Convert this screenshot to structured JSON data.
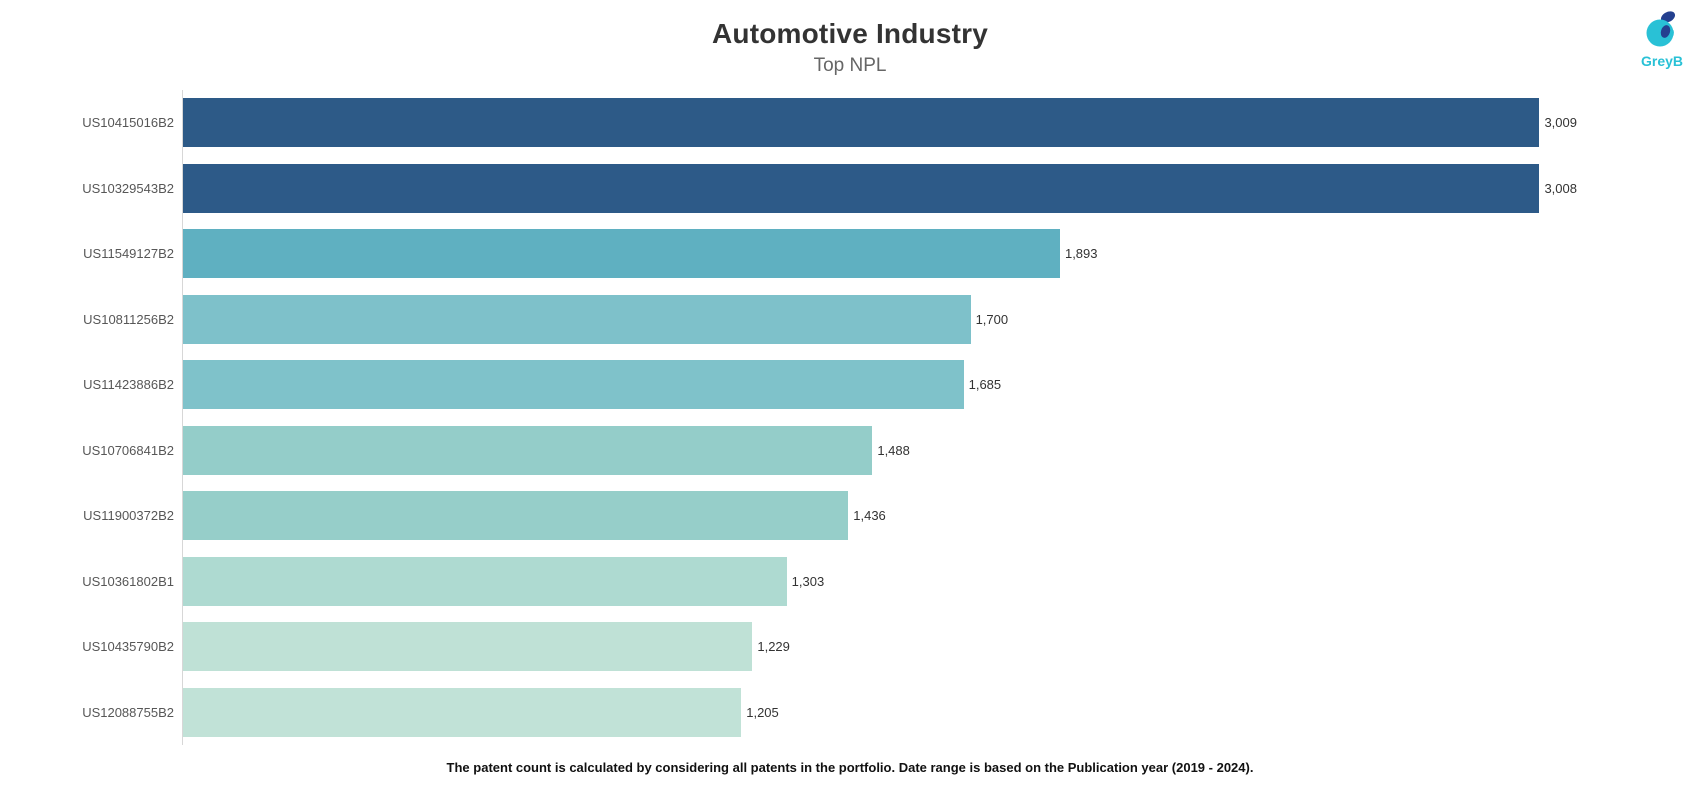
{
  "title": "Automotive Industry",
  "subtitle": "Top NPL",
  "footer_note": "The patent count is calculated by considering all patents in the portfolio. Date range is based on the Publication year (2019 - 2024).",
  "logo": {
    "text": "GreyB",
    "accent_color": "#29c1d6",
    "dark_color": "#24408f"
  },
  "colors": {
    "title": "#333333",
    "subtitle": "#666666",
    "axis_line": "#d7d7d7",
    "category_label": "#575757",
    "value_label": "#333333"
  },
  "chart_data": {
    "type": "bar",
    "orientation": "horizontal",
    "title": "Automotive Industry",
    "subtitle": "Top NPL",
    "xlabel": "",
    "ylabel": "",
    "xlim": [
      0,
      3009
    ],
    "grid": false,
    "legend": false,
    "categories": [
      "US10415016B2",
      "US10329543B2",
      "US11549127B2",
      "US10811256B2",
      "US11423886B2",
      "US10706841B2",
      "US11900372B2",
      "US10361802B1",
      "US10435790B2",
      "US12088755B2"
    ],
    "values": [
      3009,
      3008,
      1893,
      1700,
      1685,
      1488,
      1436,
      1303,
      1229,
      1205
    ],
    "value_labels": [
      "3,009",
      "3,008",
      "1,893",
      "1,700",
      "1,685",
      "1,488",
      "1,436",
      "1,303",
      "1,229",
      "1,205"
    ],
    "bar_colors": [
      "#2d5a87",
      "#2d5a88",
      "#5fb0c1",
      "#7ec1ca",
      "#7fc2ca",
      "#94cdc9",
      "#96cec9",
      "#aedad1",
      "#bfe1d6",
      "#c1e2d7"
    ]
  }
}
